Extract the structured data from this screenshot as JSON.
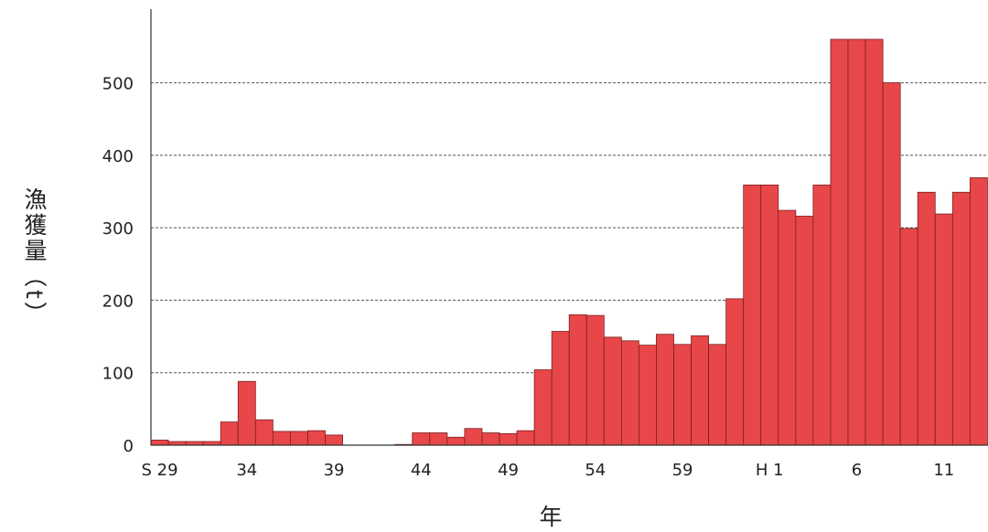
{
  "chart_data": {
    "type": "bar",
    "title": "",
    "ylabel": "漁獲量（t）",
    "xlabel": "年",
    "ylim": [
      0,
      560
    ],
    "yticks": [
      0,
      100,
      200,
      300,
      400,
      500
    ],
    "grid": "horizontal dashed",
    "bar_color": "#e8474a",
    "categories": [
      "S29",
      "S30",
      "S31",
      "S32",
      "S33",
      "S34",
      "S35",
      "S36",
      "S37",
      "S38",
      "S39",
      "S40",
      "S41",
      "S42",
      "S43",
      "S44",
      "S45",
      "S46",
      "S47",
      "S48",
      "S49",
      "S50",
      "S51",
      "S52",
      "S53",
      "S54",
      "S55",
      "S56",
      "S57",
      "S58",
      "S59",
      "S60",
      "S61",
      "S62",
      "S63",
      "H1",
      "H2",
      "H3",
      "H4",
      "H5",
      "H6",
      "H7",
      "H8",
      "H9",
      "H10",
      "H11",
      "H12",
      "H13"
    ],
    "values": [
      7,
      5,
      5,
      5,
      32,
      88,
      35,
      19,
      19,
      20,
      14,
      0,
      0,
      0,
      1,
      17,
      17,
      11,
      23,
      17,
      16,
      20,
      104,
      157,
      180,
      179,
      149,
      144,
      138,
      153,
      139,
      151,
      139,
      202,
      359,
      359,
      324,
      316,
      359,
      560,
      560,
      560,
      500,
      299,
      349,
      319,
      349,
      369
    ],
    "xtick_labels": [
      {
        "category": "S29",
        "label": "S 29"
      },
      {
        "category": "S34",
        "label": "34"
      },
      {
        "category": "S39",
        "label": "39"
      },
      {
        "category": "S44",
        "label": "44"
      },
      {
        "category": "S49",
        "label": "49"
      },
      {
        "category": "S54",
        "label": "54"
      },
      {
        "category": "S59",
        "label": "59"
      },
      {
        "category": "H1",
        "label": "H 1"
      },
      {
        "category": "H6",
        "label": "6"
      },
      {
        "category": "H11",
        "label": "11"
      }
    ]
  }
}
